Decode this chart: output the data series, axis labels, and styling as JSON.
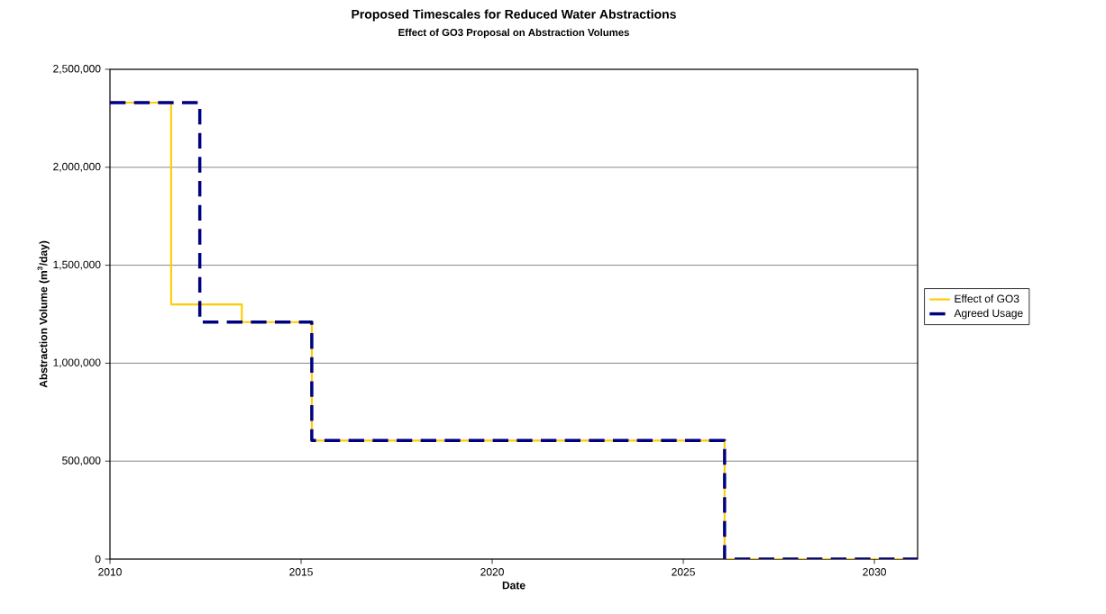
{
  "chart_data": {
    "type": "step",
    "title": "Proposed Timescales for Reduced Water Abstractions",
    "subtitle": "Effect of GO3 Proposal on Abstraction Volumes",
    "xlabel": "Date",
    "ylabel": "Abstraction Volume (m$^{3}$/day)",
    "xlim": [
      2010,
      2031.13
    ],
    "xticks": [
      2010,
      2015,
      2020,
      2025,
      2030
    ],
    "ylim": [
      0,
      2500000
    ],
    "yticks": [
      {
        "value": 0,
        "label": "0"
      },
      {
        "value": 500000,
        "label": "500,000"
      },
      {
        "value": 1000000,
        "label": "1,000,000"
      },
      {
        "value": 1500000,
        "label": "1,500,000"
      },
      {
        "value": 2000000,
        "label": "2,000,000"
      },
      {
        "value": 2500000,
        "label": "2,500,000"
      }
    ],
    "grid": "y",
    "legend": "right",
    "marker": "none",
    "series": [
      {
        "name": "Effect of GO3",
        "color": "#ffcc00",
        "line_style": "solid",
        "x": [
          2010,
          2011.6,
          2013.45,
          2015.28,
          2026.08,
          2031.13
        ],
        "values": [
          2330000,
          1300000,
          1210000,
          605000,
          0,
          0
        ]
      },
      {
        "name": "Agreed Usage",
        "color": "#000080",
        "line_style": "dashed",
        "x": [
          2010,
          2012.35,
          2015.28,
          2026.08,
          2031.13
        ],
        "values": [
          2330000,
          1210000,
          605000,
          0,
          0
        ]
      }
    ]
  }
}
